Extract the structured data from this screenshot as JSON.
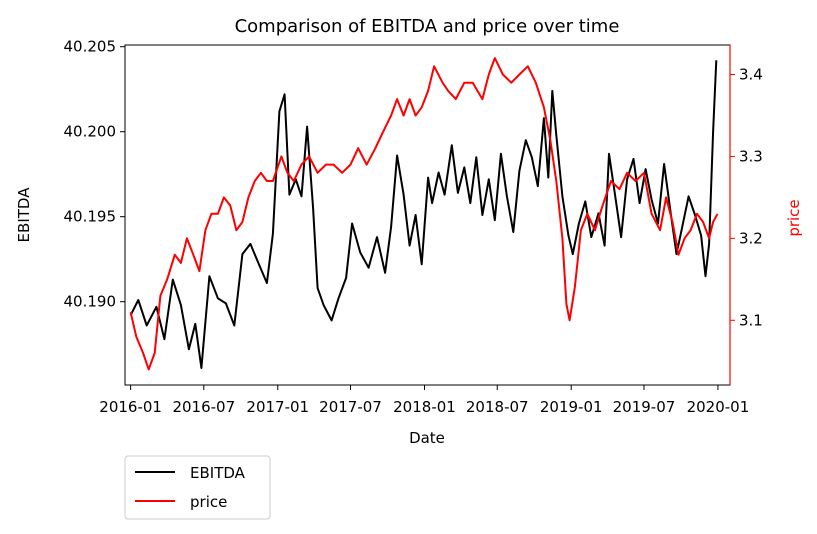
{
  "chart_data": {
    "type": "line",
    "title": "Comparison of EBITDA and price over time",
    "xlabel": "Date",
    "ylabel_left": "EBITDA",
    "ylabel_right": "price",
    "x_ticks": [
      "2016-01",
      "2016-07",
      "2017-01",
      "2017-07",
      "2018-01",
      "2018-07",
      "2019-01",
      "2019-07",
      "2020-01"
    ],
    "y_left_ticks": [
      "40.190",
      "40.195",
      "40.200",
      "40.205"
    ],
    "y_right_ticks": [
      "3.1",
      "3.2",
      "3.3",
      "3.4"
    ],
    "y_left_lim": [
      40.1851,
      40.2051
    ],
    "y_right_lim": [
      3.021,
      3.436
    ],
    "x_range": [
      "2015-12-18",
      "2020-01-31"
    ],
    "colors": {
      "EBITDA": "#000000",
      "price": "#ff0000"
    },
    "legend_placement": "below-left",
    "grid": false,
    "series": [
      {
        "name": "EBITDA",
        "axis": "left",
        "points": [
          [
            "2016-01-01",
            40.1892
          ],
          [
            "2016-01-20",
            40.1901
          ],
          [
            "2016-02-10",
            40.1886
          ],
          [
            "2016-03-05",
            40.1897
          ],
          [
            "2016-03-25",
            40.1878
          ],
          [
            "2016-04-15",
            40.1913
          ],
          [
            "2016-05-05",
            40.1898
          ],
          [
            "2016-05-25",
            40.1872
          ],
          [
            "2016-06-10",
            40.1887
          ],
          [
            "2016-06-25",
            40.1861
          ],
          [
            "2016-07-15",
            40.1915
          ],
          [
            "2016-08-05",
            40.1902
          ],
          [
            "2016-08-25",
            40.1899
          ],
          [
            "2016-09-15",
            40.1886
          ],
          [
            "2016-10-05",
            40.1928
          ],
          [
            "2016-10-25",
            40.1934
          ],
          [
            "2016-11-15",
            40.1922
          ],
          [
            "2016-12-05",
            40.1911
          ],
          [
            "2016-12-20",
            40.194
          ],
          [
            "2017-01-05",
            40.2012
          ],
          [
            "2017-01-18",
            40.2022
          ],
          [
            "2017-01-30",
            40.1963
          ],
          [
            "2017-02-15",
            40.1972
          ],
          [
            "2017-03-01",
            40.1962
          ],
          [
            "2017-03-15",
            40.2003
          ],
          [
            "2017-03-30",
            40.1955
          ],
          [
            "2017-04-10",
            40.1908
          ],
          [
            "2017-04-25",
            40.1898
          ],
          [
            "2017-05-15",
            40.1889
          ],
          [
            "2017-06-01",
            40.1902
          ],
          [
            "2017-06-20",
            40.1914
          ],
          [
            "2017-07-05",
            40.1946
          ],
          [
            "2017-07-25",
            40.1929
          ],
          [
            "2017-08-15",
            40.192
          ],
          [
            "2017-09-05",
            40.1938
          ],
          [
            "2017-09-25",
            40.1917
          ],
          [
            "2017-10-10",
            40.1944
          ],
          [
            "2017-10-25",
            40.1986
          ],
          [
            "2017-11-10",
            40.1963
          ],
          [
            "2017-11-25",
            40.1933
          ],
          [
            "2017-12-10",
            40.1951
          ],
          [
            "2017-12-25",
            40.1922
          ],
          [
            "2018-01-10",
            40.1973
          ],
          [
            "2018-01-20",
            40.1958
          ],
          [
            "2018-02-05",
            40.1976
          ],
          [
            "2018-02-20",
            40.1963
          ],
          [
            "2018-03-10",
            40.1992
          ],
          [
            "2018-03-25",
            40.1964
          ],
          [
            "2018-04-10",
            40.1979
          ],
          [
            "2018-04-25",
            40.1958
          ],
          [
            "2018-05-10",
            40.1985
          ],
          [
            "2018-05-25",
            40.1951
          ],
          [
            "2018-06-10",
            40.1972
          ],
          [
            "2018-06-25",
            40.1948
          ],
          [
            "2018-07-10",
            40.1987
          ],
          [
            "2018-07-25",
            40.1962
          ],
          [
            "2018-08-10",
            40.1941
          ],
          [
            "2018-08-25",
            40.1977
          ],
          [
            "2018-09-10",
            40.1995
          ],
          [
            "2018-09-25",
            40.1985
          ],
          [
            "2018-10-10",
            40.1968
          ],
          [
            "2018-10-25",
            40.2008
          ],
          [
            "2018-11-05",
            40.1973
          ],
          [
            "2018-11-15",
            40.2024
          ],
          [
            "2018-11-25",
            40.1998
          ],
          [
            "2018-12-10",
            40.1962
          ],
          [
            "2018-12-25",
            40.1939
          ],
          [
            "2019-01-05",
            40.1928
          ],
          [
            "2019-01-20",
            40.1946
          ],
          [
            "2019-02-05",
            40.1959
          ],
          [
            "2019-02-20",
            40.1938
          ],
          [
            "2019-03-10",
            40.1952
          ],
          [
            "2019-03-25",
            40.1933
          ],
          [
            "2019-04-05",
            40.1987
          ],
          [
            "2019-04-20",
            40.1963
          ],
          [
            "2019-05-05",
            40.1938
          ],
          [
            "2019-05-20",
            40.1972
          ],
          [
            "2019-06-05",
            40.1984
          ],
          [
            "2019-06-20",
            40.1958
          ],
          [
            "2019-07-05",
            40.1978
          ],
          [
            "2019-07-20",
            40.196
          ],
          [
            "2019-08-05",
            40.1946
          ],
          [
            "2019-08-20",
            40.1981
          ],
          [
            "2019-09-05",
            40.1953
          ],
          [
            "2019-09-20",
            40.1928
          ],
          [
            "2019-10-05",
            40.1945
          ],
          [
            "2019-10-20",
            40.1962
          ],
          [
            "2019-11-05",
            40.1951
          ],
          [
            "2019-11-20",
            40.1939
          ],
          [
            "2019-12-01",
            40.1915
          ],
          [
            "2019-12-10",
            40.1934
          ],
          [
            "2019-12-20",
            40.2
          ],
          [
            "2019-12-28",
            40.2042
          ]
        ]
      },
      {
        "name": "price",
        "axis": "right",
        "points": [
          [
            "2016-01-01",
            3.11
          ],
          [
            "2016-01-15",
            3.08
          ],
          [
            "2016-02-01",
            3.06
          ],
          [
            "2016-02-15",
            3.04
          ],
          [
            "2016-03-01",
            3.06
          ],
          [
            "2016-03-15",
            3.13
          ],
          [
            "2016-04-01",
            3.15
          ],
          [
            "2016-04-20",
            3.18
          ],
          [
            "2016-05-05",
            3.17
          ],
          [
            "2016-05-20",
            3.2
          ],
          [
            "2016-06-05",
            3.18
          ],
          [
            "2016-06-20",
            3.16
          ],
          [
            "2016-07-05",
            3.21
          ],
          [
            "2016-07-20",
            3.23
          ],
          [
            "2016-08-05",
            3.23
          ],
          [
            "2016-08-20",
            3.25
          ],
          [
            "2016-09-05",
            3.24
          ],
          [
            "2016-09-20",
            3.21
          ],
          [
            "2016-10-05",
            3.22
          ],
          [
            "2016-10-20",
            3.25
          ],
          [
            "2016-11-05",
            3.27
          ],
          [
            "2016-11-20",
            3.28
          ],
          [
            "2016-12-05",
            3.27
          ],
          [
            "2016-12-20",
            3.27
          ],
          [
            "2017-01-10",
            3.3
          ],
          [
            "2017-01-25",
            3.28
          ],
          [
            "2017-02-10",
            3.27
          ],
          [
            "2017-03-01",
            3.29
          ],
          [
            "2017-03-20",
            3.3
          ],
          [
            "2017-04-10",
            3.28
          ],
          [
            "2017-05-01",
            3.29
          ],
          [
            "2017-05-20",
            3.29
          ],
          [
            "2017-06-10",
            3.28
          ],
          [
            "2017-07-01",
            3.29
          ],
          [
            "2017-07-20",
            3.31
          ],
          [
            "2017-08-10",
            3.29
          ],
          [
            "2017-09-01",
            3.31
          ],
          [
            "2017-09-20",
            3.33
          ],
          [
            "2017-10-10",
            3.35
          ],
          [
            "2017-10-25",
            3.37
          ],
          [
            "2017-11-10",
            3.35
          ],
          [
            "2017-11-25",
            3.37
          ],
          [
            "2017-12-10",
            3.35
          ],
          [
            "2017-12-25",
            3.36
          ],
          [
            "2018-01-10",
            3.38
          ],
          [
            "2018-01-25",
            3.41
          ],
          [
            "2018-02-15",
            3.39
          ],
          [
            "2018-03-01",
            3.38
          ],
          [
            "2018-03-20",
            3.37
          ],
          [
            "2018-04-10",
            3.39
          ],
          [
            "2018-05-01",
            3.39
          ],
          [
            "2018-05-25",
            3.37
          ],
          [
            "2018-06-10",
            3.4
          ],
          [
            "2018-06-25",
            3.42
          ],
          [
            "2018-07-15",
            3.4
          ],
          [
            "2018-08-05",
            3.39
          ],
          [
            "2018-08-25",
            3.4
          ],
          [
            "2018-09-15",
            3.41
          ],
          [
            "2018-10-05",
            3.39
          ],
          [
            "2018-10-25",
            3.36
          ],
          [
            "2018-11-10",
            3.32
          ],
          [
            "2018-11-25",
            3.27
          ],
          [
            "2018-12-10",
            3.2
          ],
          [
            "2018-12-20",
            3.12
          ],
          [
            "2018-12-28",
            3.1
          ],
          [
            "2019-01-10",
            3.14
          ],
          [
            "2019-01-25",
            3.21
          ],
          [
            "2019-02-10",
            3.23
          ],
          [
            "2019-03-01",
            3.21
          ],
          [
            "2019-03-20",
            3.24
          ],
          [
            "2019-04-10",
            3.27
          ],
          [
            "2019-05-01",
            3.26
          ],
          [
            "2019-05-20",
            3.28
          ],
          [
            "2019-06-10",
            3.27
          ],
          [
            "2019-07-01",
            3.28
          ],
          [
            "2019-07-20",
            3.23
          ],
          [
            "2019-08-10",
            3.21
          ],
          [
            "2019-08-25",
            3.25
          ],
          [
            "2019-09-10",
            3.22
          ],
          [
            "2019-09-25",
            3.18
          ],
          [
            "2019-10-10",
            3.2
          ],
          [
            "2019-10-25",
            3.21
          ],
          [
            "2019-11-10",
            3.23
          ],
          [
            "2019-11-25",
            3.22
          ],
          [
            "2019-12-10",
            3.2
          ],
          [
            "2019-12-20",
            3.22
          ],
          [
            "2019-12-31",
            3.23
          ]
        ]
      }
    ]
  }
}
